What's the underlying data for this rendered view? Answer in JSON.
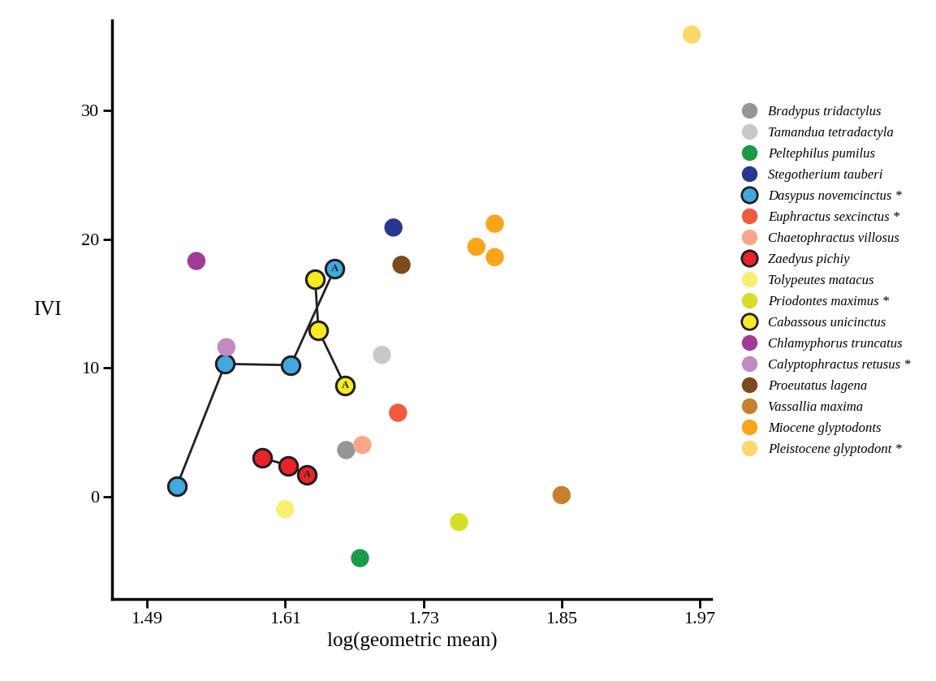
{
  "chart_data": {
    "type": "scatter",
    "x_label": "log(geometric mean)",
    "y_label": "IVI",
    "xlim": [
      1.46,
      1.98
    ],
    "ylim": [
      -8,
      37
    ],
    "xticks": [
      1.49,
      1.61,
      1.73,
      1.85,
      1.97
    ],
    "yticks": [
      0,
      10,
      20,
      30
    ],
    "grid": false,
    "legend": "center left",
    "series": [
      {
        "name": "Bradypus tridactylus",
        "color": "#939598",
        "marker": "circle",
        "x": [
          1.663
        ],
        "y": [
          3.6
        ]
      },
      {
        "name": "Tamandua tetradactyla",
        "color": "#c7c8ca",
        "marker": "circle",
        "x": [
          1.694
        ],
        "y": [
          11.0
        ]
      },
      {
        "name": "Peltephilus pumilus",
        "color": "#1a9a48",
        "marker": "circle",
        "x": [
          1.675
        ],
        "y": [
          -4.8
        ]
      },
      {
        "name": "Stegotherium tauberi",
        "color": "#283891",
        "marker": "circle",
        "x": [
          1.704
        ],
        "y": [
          20.9
        ]
      },
      {
        "name": "Dasypus novemcinctus *",
        "color": "#3fa9e0",
        "marker": "outlined_circle",
        "line_style": "solid",
        "x": [
          1.516,
          1.558,
          1.615,
          1.653
        ],
        "y": [
          0.8,
          10.3,
          10.2,
          17.7
        ],
        "point_labels": [
          null,
          null,
          null,
          "A"
        ]
      },
      {
        "name": "Euphractus sexcinctus *",
        "color": "#f05a3f",
        "marker": "circle",
        "x": [
          1.708
        ],
        "y": [
          6.5
        ]
      },
      {
        "name": "Chaetophractus villosus",
        "color": "#f7a68a",
        "marker": "circle",
        "x": [
          1.677
        ],
        "y": [
          4.0
        ]
      },
      {
        "name": "Zaedyus pichiy",
        "color": "#e8232a",
        "marker": "outlined_circle",
        "line_style": "solid",
        "x": [
          1.59,
          1.613,
          1.629
        ],
        "y": [
          3.0,
          2.4,
          1.7
        ],
        "point_labels": [
          null,
          null,
          "A"
        ]
      },
      {
        "name": "Tolypeutes matacus",
        "color": "#f7f06e",
        "marker": "circle",
        "x": [
          1.61
        ],
        "y": [
          -1.0
        ]
      },
      {
        "name": "Priodontes maximus *",
        "color": "#d6de26",
        "marker": "circle",
        "x": [
          1.761
        ],
        "y": [
          -2.0
        ]
      },
      {
        "name": "Cabassous unicinctus",
        "color": "#f4eb20",
        "marker": "outlined_circle",
        "line_style": "solid",
        "x": [
          1.636,
          1.639,
          1.662
        ],
        "y": [
          16.9,
          12.9,
          8.6
        ],
        "point_labels": [
          null,
          null,
          "A"
        ]
      },
      {
        "name": "Chlamyphorus truncatus",
        "color": "#9e3c98",
        "marker": "circle",
        "x": [
          1.533
        ],
        "y": [
          18.3
        ]
      },
      {
        "name": "Calyptophractus retusus *",
        "color": "#c28ac0",
        "marker": "circle",
        "x": [
          1.559
        ],
        "y": [
          11.6
        ]
      },
      {
        "name": "Proeutatus lagena",
        "color": "#7b4a1d",
        "marker": "circle",
        "x": [
          1.711
        ],
        "y": [
          18.0
        ]
      },
      {
        "name": "Vassallia maxima",
        "color": "#c87f2e",
        "marker": "circle",
        "x": [
          1.85
        ],
        "y": [
          0.1
        ]
      },
      {
        "name": "Miocene glyptodonts",
        "color": "#f8a51c",
        "marker": "circle",
        "x": [
          1.776,
          1.792,
          1.792
        ],
        "y": [
          19.4,
          21.2,
          18.6
        ]
      },
      {
        "name": "Pleistocene glyptodont *",
        "color": "#fcd76a",
        "marker": "circle",
        "x": [
          1.963
        ],
        "y": [
          35.9
        ]
      }
    ]
  }
}
